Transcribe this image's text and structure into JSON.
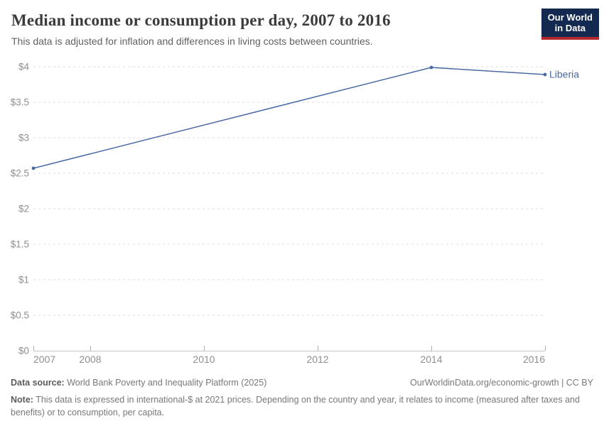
{
  "header": {
    "title": "Median income or consumption per day, 2007 to 2016",
    "subtitle": "This data is adjusted for inflation and differences in living costs between countries.",
    "logo": {
      "line1": "Our World",
      "line2": "in Data",
      "bg_color": "#13294f",
      "accent_color": "#b3282d"
    }
  },
  "chart_data": {
    "type": "line",
    "title": "Median income or consumption per day, 2007 to 2016",
    "xlabel": "",
    "ylabel": "",
    "xlim": [
      2007,
      2016
    ],
    "ylim": [
      0,
      4
    ],
    "grid": "horizontal-dashed",
    "legend_position": "end-of-line-label",
    "x_ticks": [
      2007,
      2008,
      2010,
      2012,
      2014,
      2016
    ],
    "y_ticks": [
      0,
      0.5,
      1,
      1.5,
      2,
      2.5,
      3,
      3.5,
      4
    ],
    "y_tick_labels": [
      "$0",
      "$0.5",
      "$1",
      "$1.5",
      "$2",
      "$2.5",
      "$3",
      "$3.5",
      "$4"
    ],
    "currency_prefix": "$",
    "series": [
      {
        "name": "Liberia",
        "color": "#4a6aa4",
        "points": [
          {
            "x": 2007,
            "y": 2.57
          },
          {
            "x": 2014,
            "y": 3.99
          },
          {
            "x": 2016,
            "y": 3.89
          }
        ]
      }
    ],
    "style": {
      "gridline_color": "#dcdcdc",
      "axis_color": "#c4c4c4",
      "tick_color": "#afafaf",
      "tick_label_color": "#8f8f8f"
    }
  },
  "footer": {
    "data_source_label": "Data source:",
    "data_source": "World Bank Poverty and Inequality Platform (2025)",
    "link": "OurWorldinData.org/economic-growth | CC BY",
    "note_label": "Note:",
    "note": "This data is expressed in international-$ at 2021 prices. Depending on the country and year, it relates to income (measured after taxes and benefits) or to consumption, per capita."
  }
}
